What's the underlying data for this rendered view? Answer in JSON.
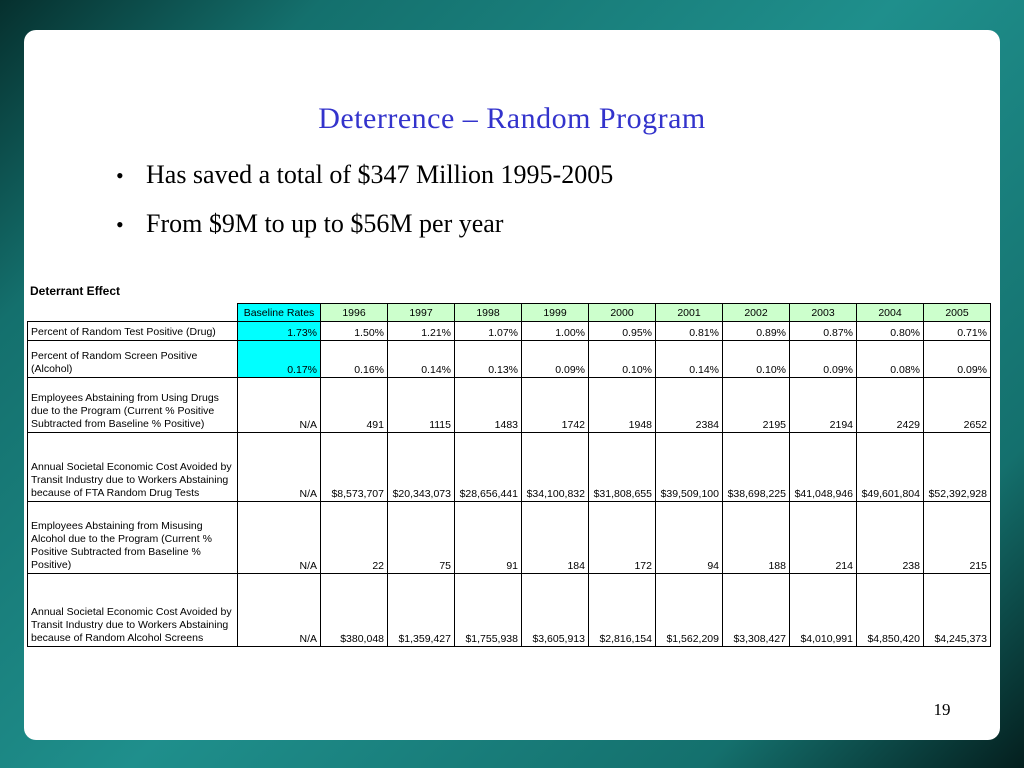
{
  "slide": {
    "title": "Deterrence – Random Program",
    "bullets": [
      "Has saved a total of $347 Million 1995-2005",
      "From $9M to up to $56M per year"
    ],
    "page_number": "19"
  },
  "colors": {
    "title_blue": "#3333cc",
    "baseline_header_bg": "#00ffff",
    "year_header_bg": "#ccffcc",
    "baseline_cell_bg": "#00ffff",
    "frame_teal": "#1f8f8c"
  },
  "table": {
    "caption": "Deterrant Effect",
    "columns": [
      "Baseline Rates",
      "1996",
      "1997",
      "1998",
      "1999",
      "2000",
      "2001",
      "2002",
      "2003",
      "2004",
      "2005"
    ],
    "rows": [
      {
        "label": "Percent of Random Test Positive (Drug)",
        "baseline": "1.73%",
        "baseline_highlighted": true,
        "values": [
          "1.50%",
          "1.21%",
          "1.07%",
          "1.00%",
          "0.95%",
          "0.81%",
          "0.89%",
          "0.87%",
          "0.80%",
          "0.71%"
        ]
      },
      {
        "label": "Percent of Random Screen Positive (Alcohol)",
        "baseline": "0.17%",
        "baseline_highlighted": true,
        "values": [
          "0.16%",
          "0.14%",
          "0.13%",
          "0.09%",
          "0.10%",
          "0.14%",
          "0.10%",
          "0.09%",
          "0.08%",
          "0.09%"
        ]
      },
      {
        "label": "Employees Abstaining from Using Drugs due to the Program (Current % Positive Subtracted from Baseline % Positive)",
        "baseline": "N/A",
        "baseline_highlighted": false,
        "values": [
          "491",
          "1115",
          "1483",
          "1742",
          "1948",
          "2384",
          "2195",
          "2194",
          "2429",
          "2652"
        ]
      },
      {
        "label": "Annual Societal Economic Cost Avoided by Transit Industry due to Workers Abstaining because of FTA Random Drug Tests",
        "baseline": "N/A",
        "baseline_highlighted": false,
        "values": [
          "$8,573,707",
          "$20,343,073",
          "$28,656,441",
          "$34,100,832",
          "$31,808,655",
          "$39,509,100",
          "$38,698,225",
          "$41,048,946",
          "$49,601,804",
          "$52,392,928"
        ]
      },
      {
        "label": "Employees Abstaining from Misusing Alcohol due to the Program (Current % Positive Subtracted from Baseline % Positive)",
        "baseline": "N/A",
        "baseline_highlighted": false,
        "values": [
          "22",
          "75",
          "91",
          "184",
          "172",
          "94",
          "188",
          "214",
          "238",
          "215"
        ]
      },
      {
        "label": "Annual Societal Economic Cost Avoided by Transit Industry due to Workers Abstaining because of Random Alcohol Screens",
        "baseline": "N/A",
        "baseline_highlighted": false,
        "values": [
          "$380,048",
          "$1,359,427",
          "$1,755,938",
          "$3,605,913",
          "$2,816,154",
          "$1,562,209",
          "$3,308,427",
          "$4,010,991",
          "$4,850,420",
          "$4,245,373"
        ]
      }
    ]
  }
}
